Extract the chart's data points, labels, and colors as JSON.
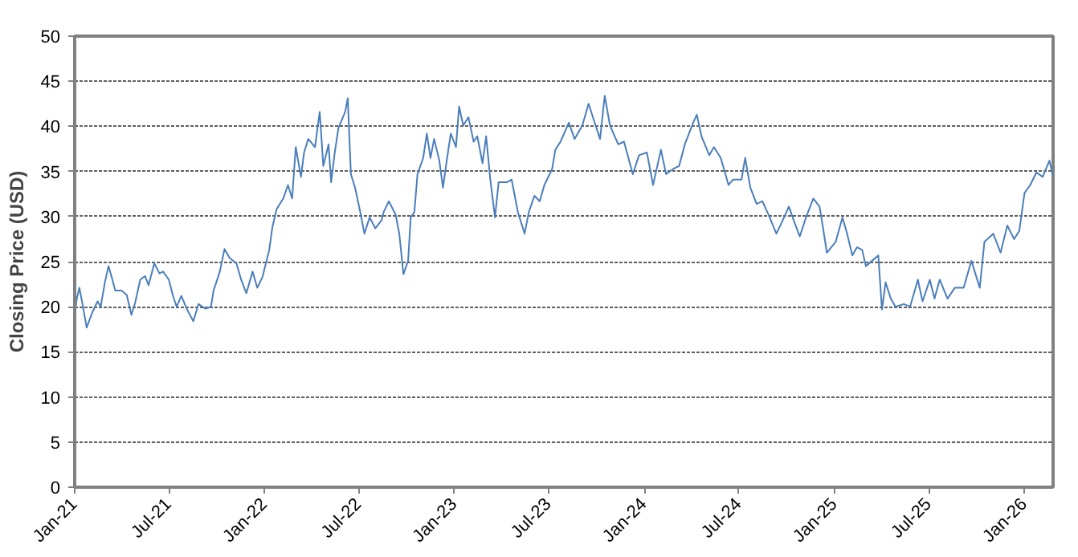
{
  "chart_data": {
    "type": "line",
    "ylabel": "Closing Price (USD)",
    "x": [
      "2021-01-01",
      "2021-01-05",
      "2021-01-10",
      "2021-01-16",
      "2021-01-24",
      "2021-02-04",
      "2021-02-14",
      "2021-02-20",
      "2021-02-28",
      "2021-03-07",
      "2021-03-13",
      "2021-03-20",
      "2021-04-01",
      "2021-04-11",
      "2021-04-20",
      "2021-04-27",
      "2021-05-07",
      "2021-05-16",
      "2021-05-23",
      "2021-06-03",
      "2021-06-13",
      "2021-06-20",
      "2021-07-01",
      "2021-07-09",
      "2021-07-16",
      "2021-07-25",
      "2021-08-05",
      "2021-08-17",
      "2021-08-27",
      "2021-09-09",
      "2021-09-20",
      "2021-09-25",
      "2021-10-07",
      "2021-10-16",
      "2021-10-26",
      "2021-11-08",
      "2021-11-17",
      "2021-11-27",
      "2021-12-09",
      "2021-12-18",
      "2021-12-28",
      "2022-01-10",
      "2022-01-16",
      "2022-01-24",
      "2022-02-06",
      "2022-02-15",
      "2022-02-23",
      "2022-03-02",
      "2022-03-12",
      "2022-03-18",
      "2022-03-26",
      "2022-04-08",
      "2022-04-17",
      "2022-04-24",
      "2022-05-04",
      "2022-05-09",
      "2022-05-16",
      "2022-05-23",
      "2022-06-05",
      "2022-06-10",
      "2022-06-16",
      "2022-06-24",
      "2022-07-04",
      "2022-07-12",
      "2022-07-22",
      "2022-08-02",
      "2022-08-14",
      "2022-08-18",
      "2022-08-28",
      "2022-09-10",
      "2022-09-17",
      "2022-09-25",
      "2022-10-04",
      "2022-10-09",
      "2022-10-16",
      "2022-10-22",
      "2022-11-02",
      "2022-11-09",
      "2022-11-16",
      "2022-11-23",
      "2022-12-03",
      "2022-12-10",
      "2022-12-18",
      "2022-12-25",
      "2023-01-04",
      "2023-01-10",
      "2023-01-18",
      "2023-01-28",
      "2023-02-07",
      "2023-02-14",
      "2023-02-24",
      "2023-03-03",
      "2023-03-11",
      "2023-03-20",
      "2023-03-27",
      "2023-04-12",
      "2023-04-21",
      "2023-05-03",
      "2023-05-16",
      "2023-05-24",
      "2023-06-04",
      "2023-06-14",
      "2023-06-23",
      "2023-07-08",
      "2023-07-14",
      "2023-07-24",
      "2023-08-09",
      "2023-08-20",
      "2023-09-04",
      "2023-09-16",
      "2023-09-26",
      "2023-10-08",
      "2023-10-17",
      "2023-10-27",
      "2023-11-12",
      "2023-11-23",
      "2023-12-10",
      "2023-12-22",
      "2024-01-06",
      "2024-01-18",
      "2024-02-02",
      "2024-02-12",
      "2024-02-26",
      "2024-03-08",
      "2024-03-19",
      "2024-04-04",
      "2024-04-11",
      "2024-04-20",
      "2024-05-05",
      "2024-05-14",
      "2024-05-27",
      "2024-06-11",
      "2024-06-20",
      "2024-07-06",
      "2024-07-13",
      "2024-07-23",
      "2024-08-04",
      "2024-08-15",
      "2024-08-27",
      "2024-09-11",
      "2024-09-21",
      "2024-10-05",
      "2024-10-16",
      "2024-10-26",
      "2024-11-07",
      "2024-11-21",
      "2024-12-03",
      "2024-12-09",
      "2024-12-17",
      "2025-01-03",
      "2025-01-16",
      "2025-01-25",
      "2025-02-04",
      "2025-02-13",
      "2025-02-23",
      "2025-03-02",
      "2025-03-14",
      "2025-03-26",
      "2025-04-02",
      "2025-04-09",
      "2025-04-19",
      "2025-04-28",
      "2025-05-14",
      "2025-05-26",
      "2025-06-10",
      "2025-06-19",
      "2025-07-03",
      "2025-07-12",
      "2025-07-22",
      "2025-08-06",
      "2025-08-20",
      "2025-09-06",
      "2025-09-21",
      "2025-10-07",
      "2025-10-16",
      "2025-11-02",
      "2025-11-16",
      "2025-11-29",
      "2025-12-12",
      "2025-12-22",
      "2026-01-01",
      "2026-01-12",
      "2026-01-24",
      "2026-02-05",
      "2026-02-18",
      "2026-02-25"
    ],
    "series": [
      {
        "color": "#4a7ebb",
        "values": [
          19.0,
          20.9,
          22.1,
          20.3,
          17.7,
          19.4,
          20.6,
          20.0,
          22.7,
          24.5,
          23.3,
          21.8,
          21.8,
          21.3,
          19.1,
          20.4,
          23.0,
          23.4,
          22.4,
          24.8,
          23.7,
          23.9,
          23.0,
          21.2,
          20.0,
          21.2,
          19.7,
          18.4,
          20.3,
          19.8,
          20.0,
          21.8,
          23.9,
          26.4,
          25.4,
          24.8,
          23.0,
          21.5,
          23.9,
          22.1,
          23.3,
          26.3,
          28.8,
          30.8,
          32.0,
          33.5,
          32.0,
          37.7,
          34.4,
          37.1,
          38.6,
          37.7,
          41.6,
          35.6,
          38.0,
          33.8,
          37.1,
          39.8,
          41.6,
          43.1,
          34.7,
          33.2,
          30.5,
          28.1,
          29.9,
          28.7,
          29.6,
          30.5,
          31.7,
          30.2,
          28.1,
          23.6,
          25.1,
          29.9,
          30.5,
          34.7,
          36.5,
          39.2,
          36.5,
          38.6,
          36.2,
          33.2,
          36.5,
          39.2,
          37.7,
          42.2,
          40.1,
          41.0,
          38.3,
          38.9,
          35.9,
          38.9,
          34.1,
          29.9,
          33.8,
          33.8,
          34.1,
          30.5,
          28.1,
          30.5,
          32.3,
          31.7,
          33.5,
          35.3,
          37.4,
          38.3,
          40.4,
          38.6,
          40.1,
          42.5,
          40.7,
          38.6,
          43.4,
          40.1,
          38.0,
          38.3,
          34.7,
          36.8,
          37.1,
          33.5,
          37.4,
          34.7,
          35.3,
          35.6,
          38.0,
          40.4,
          41.3,
          38.9,
          36.8,
          37.7,
          36.5,
          33.5,
          34.1,
          34.1,
          36.5,
          33.2,
          31.4,
          31.7,
          30.2,
          28.1,
          29.3,
          31.1,
          29.3,
          27.8,
          29.9,
          32.0,
          31.1,
          29.0,
          26.0,
          27.2,
          29.9,
          28.1,
          25.7,
          26.6,
          26.3,
          24.5,
          25.1,
          25.7,
          19.7,
          22.7,
          20.9,
          20.0,
          20.3,
          20.0,
          23.0,
          20.6,
          23.0,
          20.9,
          23.0,
          20.9,
          22.1,
          22.1,
          25.1,
          22.1,
          27.2,
          28.1,
          26.0,
          29.0,
          27.5,
          28.4,
          32.6,
          33.5,
          34.9,
          34.4,
          36.2,
          34.4
        ]
      }
    ],
    "xlim": [
      "2021-01-01",
      "2026-02-25"
    ],
    "xticks": [
      {
        "value": "2021-01-01",
        "label": "Jan-21"
      },
      {
        "value": "2021-07-01",
        "label": "Jul-21"
      },
      {
        "value": "2022-01-01",
        "label": "Jan-22"
      },
      {
        "value": "2022-07-01",
        "label": "Jul-22"
      },
      {
        "value": "2023-01-01",
        "label": "Jan-23"
      },
      {
        "value": "2023-07-01",
        "label": "Jul-23"
      },
      {
        "value": "2024-01-01",
        "label": "Jan-24"
      },
      {
        "value": "2024-07-01",
        "label": "Jul-24"
      },
      {
        "value": "2025-01-01",
        "label": "Jan-25"
      },
      {
        "value": "2025-07-01",
        "label": "Jul-25"
      },
      {
        "value": "2026-01-01",
        "label": "Jan-26"
      }
    ],
    "ylim": [
      0,
      50
    ],
    "yticks": [
      0,
      5,
      10,
      15,
      20,
      25,
      30,
      35,
      40,
      45,
      50
    ],
    "grid": "y",
    "line_style": "solid"
  }
}
